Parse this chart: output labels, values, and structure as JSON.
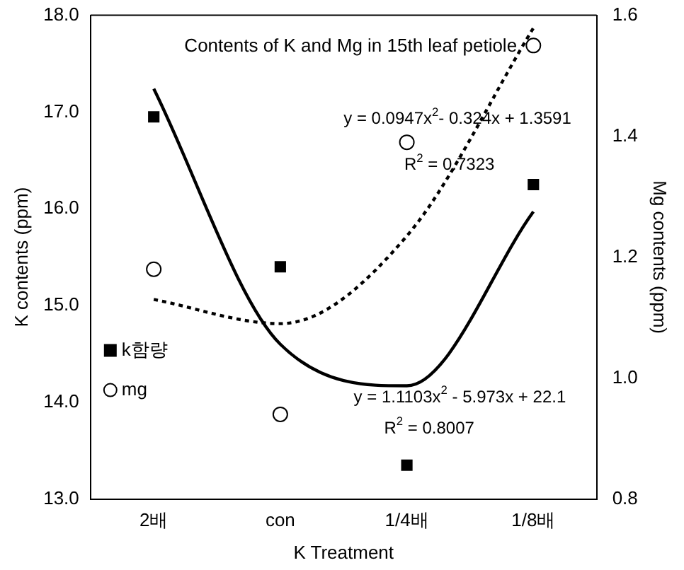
{
  "chart_data": {
    "type": "scatter",
    "title": "Contents of K and Mg in 15th leaf petiole",
    "xlabel": "K Treatment",
    "ylabel": "K contents (ppm)",
    "y2label": "Mg contents (ppm)",
    "categories": [
      "2배",
      "con",
      "1/4배",
      "1/8배"
    ],
    "series": [
      {
        "name": "k함량",
        "marker": "square",
        "color": "#000000",
        "values": [
          16.95,
          15.4,
          13.35,
          16.25
        ]
      },
      {
        "name": "mg",
        "marker": "circle",
        "axis": "y2",
        "color": "#000000",
        "values": [
          1.18,
          0.94,
          1.39,
          1.55
        ]
      },
      {
        "type": "line",
        "marker": "none",
        "line_style": "solid",
        "color": "#000000",
        "values": [
          17.24,
          14.6,
          14.17,
          15.97
        ]
      },
      {
        "type": "line",
        "marker": "none",
        "line_style": "dotted",
        "axis": "y2",
        "color": "#000000",
        "values": [
          1.13,
          1.09,
          1.235,
          1.579
        ]
      }
    ],
    "ylim": [
      13,
      18
    ],
    "yticks": [
      {
        "value": 13,
        "label": "13.0"
      },
      {
        "value": 14,
        "label": "14.0"
      },
      {
        "value": 15,
        "label": "15.0"
      },
      {
        "value": 16,
        "label": "16.0"
      },
      {
        "value": 17,
        "label": "17.0"
      },
      {
        "value": 18,
        "label": "18.0"
      }
    ],
    "y2lim": [
      0.8,
      1.6
    ],
    "y2ticks": [
      0.8,
      {
        "value": 1,
        "label": "1.0"
      },
      1.2,
      1.4,
      1.6
    ],
    "annotations": [
      "y = 0.0947x$^{2}$- 0.324x + 1.3591",
      "R$^{2}$ = 0.7323",
      "y = 1.1103x$^{2}$ - 5.973x + 22.1",
      "R$^{2}$ = 0.8007"
    ],
    "legend": "bottom left",
    "grid": false
  }
}
